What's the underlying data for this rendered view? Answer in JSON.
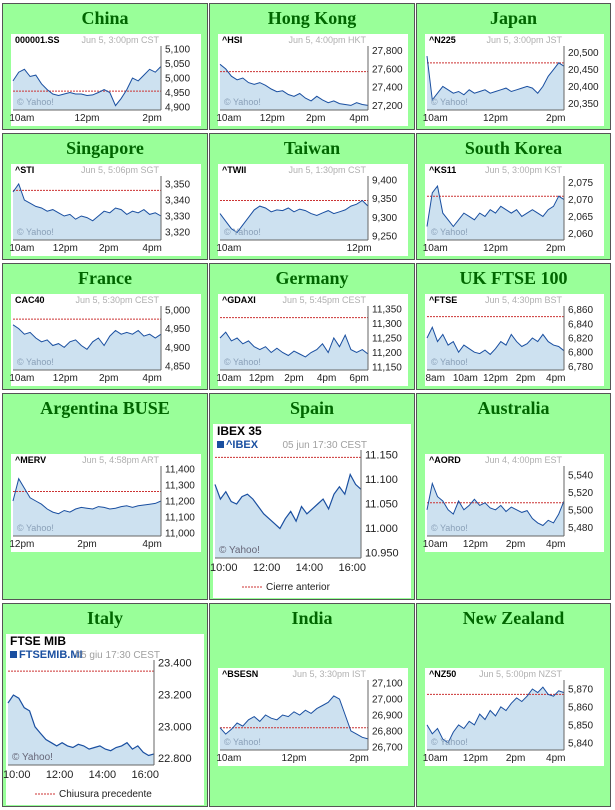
{
  "chart_data": [
    {
      "type": "line",
      "region": "China",
      "symbol": "000001.SS",
      "timestamp": "Jun 5, 3:00pm CST",
      "watermark": "© Yahoo!",
      "x_ticks": [
        "10am",
        "12pm",
        "2pm"
      ],
      "y_ticks": [
        5100,
        5050,
        5000,
        4950,
        4900
      ],
      "ylim": [
        4890,
        5110
      ],
      "prev_close": 4955,
      "line_color": "#1a4fa0",
      "fill_color": "#cde1f0",
      "prev_color": "#cc3333",
      "values": [
        4990,
        5020,
        5030,
        5005,
        5010,
        4980,
        4960,
        4945,
        4940,
        4945,
        4950,
        4945,
        4945,
        4940,
        4942,
        4950,
        4960,
        4950,
        4905,
        4930,
        4960,
        5000,
        4990,
        5010,
        5030,
        5020,
        5040
      ]
    },
    {
      "type": "line",
      "region": "Hong Kong",
      "symbol": "^HSI",
      "timestamp": "Jun 5, 4:00pm HKT",
      "watermark": "© Yahoo!",
      "x_ticks": [
        "10am",
        "12pm",
        "2pm",
        "4pm"
      ],
      "y_ticks": [
        27800,
        27600,
        27400,
        27200
      ],
      "ylim": [
        27150,
        27850
      ],
      "prev_close": 27570,
      "line_color": "#1a4fa0",
      "fill_color": "#cde1f0",
      "prev_color": "#cc3333",
      "values": [
        27650,
        27600,
        27520,
        27480,
        27500,
        27450,
        27430,
        27450,
        27420,
        27380,
        27350,
        27360,
        27320,
        27300,
        27330,
        27280,
        27250,
        27300,
        27260,
        27230,
        27250,
        27220,
        27210,
        27200,
        27230,
        27210,
        27200
      ]
    },
    {
      "type": "line",
      "region": "Japan",
      "symbol": "^N225",
      "timestamp": "Jun 5, 3:00pm JST",
      "watermark": "© Yahoo!",
      "x_ticks": [
        "10am",
        "12pm",
        "2pm"
      ],
      "y_ticks": [
        20500,
        20450,
        20400,
        20350
      ],
      "ylim": [
        20330,
        20520
      ],
      "prev_close": 20470,
      "line_color": "#1a4fa0",
      "fill_color": "#cde1f0",
      "prev_color": "#cc3333",
      "values": [
        20490,
        20360,
        20380,
        20400,
        20390,
        20380,
        20385,
        20375,
        20390,
        20380,
        20385,
        20390,
        20380,
        20385,
        20390,
        20395,
        20385,
        20390,
        20395,
        20400,
        20395,
        20380,
        20400,
        20430,
        20450,
        20470,
        20460
      ]
    },
    {
      "type": "line",
      "region": "Singapore",
      "symbol": "^STI",
      "timestamp": "Jun 5, 5:06pm SGT",
      "watermark": "© Yahoo!",
      "x_ticks": [
        "10am",
        "12pm",
        "2pm",
        "4pm"
      ],
      "y_ticks": [
        3350,
        3340,
        3330,
        3320
      ],
      "ylim": [
        3315,
        3355
      ],
      "prev_close": 3346,
      "line_color": "#1a4fa0",
      "fill_color": "#cde1f0",
      "prev_color": "#cc3333",
      "values": [
        3345,
        3350,
        3340,
        3338,
        3336,
        3335,
        3333,
        3334,
        3332,
        3330,
        3331,
        3328,
        3330,
        3329,
        3327,
        3330,
        3333,
        3332,
        3335,
        3334,
        3331,
        3333,
        3332,
        3334,
        3331,
        3332,
        3330
      ]
    },
    {
      "type": "line",
      "region": "Taiwan",
      "symbol": "^TWII",
      "timestamp": "Jun 5, 1:30pm CST",
      "watermark": "© Yahoo!",
      "x_ticks": [
        "10am",
        "12pm"
      ],
      "y_ticks": [
        9400,
        9350,
        9300,
        9250
      ],
      "ylim": [
        9240,
        9410
      ],
      "prev_close": 9345,
      "line_color": "#1a4fa0",
      "fill_color": "#cde1f0",
      "prev_color": "#cc3333",
      "values": [
        9310,
        9290,
        9270,
        9260,
        9280,
        9300,
        9320,
        9330,
        9325,
        9315,
        9320,
        9318,
        9325,
        9315,
        9322,
        9318,
        9310,
        9305,
        9312,
        9318,
        9310,
        9315,
        9320,
        9330,
        9335,
        9345,
        9330
      ]
    },
    {
      "type": "line",
      "region": "South Korea",
      "symbol": "^KS11",
      "timestamp": "Jun 5, 3:00pm KST",
      "watermark": "© Yahoo!",
      "x_ticks": [
        "10am",
        "12pm",
        "2pm"
      ],
      "y_ticks": [
        2075,
        2070,
        2065,
        2060
      ],
      "ylim": [
        2058,
        2077
      ],
      "prev_close": 2071,
      "line_color": "#1a4fa0",
      "fill_color": "#cde1f0",
      "prev_color": "#cc3333",
      "values": [
        2062,
        2072,
        2074,
        2066,
        2064,
        2062,
        2064,
        2066,
        2065,
        2064,
        2066,
        2065,
        2067,
        2066,
        2068,
        2067,
        2066,
        2067,
        2065,
        2066,
        2067,
        2066,
        2065,
        2067,
        2068,
        2071,
        2070
      ]
    },
    {
      "type": "line",
      "region": "France",
      "symbol": "CAC40",
      "timestamp": "Jun 5, 5:30pm CEST",
      "watermark": "© Yahoo!",
      "x_ticks": [
        "10am",
        "12pm",
        "2pm",
        "4pm"
      ],
      "y_ticks": [
        5000,
        4950,
        4900,
        4850
      ],
      "ylim": [
        4840,
        5010
      ],
      "prev_close": 4975,
      "line_color": "#1a4fa0",
      "fill_color": "#cde1f0",
      "prev_color": "#cc3333",
      "values": [
        4960,
        4950,
        4935,
        4940,
        4925,
        4915,
        4920,
        4905,
        4910,
        4900,
        4915,
        4920,
        4905,
        4895,
        4915,
        4925,
        4905,
        4930,
        4945,
        4935,
        4940,
        4935,
        4945,
        4930,
        4935,
        4925,
        4935
      ]
    },
    {
      "type": "line",
      "region": "Germany",
      "symbol": "^GDAXI",
      "timestamp": "Jun 5, 5:45pm CEST",
      "watermark": "© Yahoo!",
      "x_ticks": [
        "10am",
        "12pm",
        "2pm",
        "4pm",
        "6pm"
      ],
      "y_ticks": [
        11350,
        11300,
        11250,
        11200,
        11150
      ],
      "ylim": [
        11140,
        11360
      ],
      "prev_close": 11320,
      "line_color": "#1a4fa0",
      "fill_color": "#cde1f0",
      "prev_color": "#cc3333",
      "values": [
        11250,
        11270,
        11240,
        11250,
        11230,
        11240,
        11220,
        11210,
        11220,
        11200,
        11215,
        11200,
        11190,
        11205,
        11195,
        11185,
        11200,
        11210,
        11230,
        11200,
        11250,
        11220,
        11260,
        11210,
        11200,
        11210,
        11195
      ]
    },
    {
      "type": "line",
      "region": "UK FTSE 100",
      "symbol": "^FTSE",
      "timestamp": "Jun 5, 4:30pm BST",
      "watermark": "© Yahoo!",
      "x_ticks": [
        "8am",
        "10am",
        "12pm",
        "2pm",
        "4pm"
      ],
      "y_ticks": [
        6860,
        6840,
        6820,
        6800,
        6780
      ],
      "ylim": [
        6775,
        6865
      ],
      "prev_close": 6850,
      "line_color": "#1a4fa0",
      "fill_color": "#cde1f0",
      "prev_color": "#cc3333",
      "values": [
        6820,
        6835,
        6815,
        6825,
        6810,
        6815,
        6800,
        6810,
        6805,
        6800,
        6798,
        6803,
        6797,
        6805,
        6815,
        6810,
        6825,
        6815,
        6808,
        6812,
        6820,
        6815,
        6825,
        6815,
        6810,
        6808,
        6802
      ]
    },
    {
      "type": "line",
      "region": "Argentina BUSE",
      "symbol": "^MERV",
      "timestamp": "Jun 5, 4:58pm ART",
      "watermark": "© Yahoo!",
      "x_ticks": [
        "12pm",
        "2pm",
        "4pm"
      ],
      "y_ticks": [
        11400,
        11300,
        11200,
        11100,
        11000
      ],
      "ylim": [
        10980,
        11420
      ],
      "prev_close": 11260,
      "line_color": "#1a4fa0",
      "fill_color": "#cde1f0",
      "prev_color": "#cc3333",
      "values": [
        11200,
        11340,
        11280,
        11220,
        11200,
        11180,
        11150,
        11130,
        11120,
        11140,
        11130,
        11150,
        11160,
        11155,
        11150,
        11165,
        11160,
        11150,
        11155,
        11165,
        11170,
        11160,
        11170,
        11175,
        11180,
        11185,
        11200
      ]
    },
    {
      "type": "line",
      "region": "Spain",
      "title": "IBEX 35",
      "symbol": "^IBEX",
      "timestamp": "05 jun 17:30 CEST",
      "watermark": "© Yahoo!",
      "legend": "Cierre anterior",
      "x_ticks": [
        "10:00",
        "12:00",
        "14:00",
        "16:00"
      ],
      "y_ticks": [
        "11.150",
        "11.100",
        "11.050",
        "11.000",
        "10.950"
      ],
      "ylim": [
        10940,
        11160
      ],
      "prev_close": 11145,
      "line_color": "#1a4fa0",
      "fill_color": "#cde1f0",
      "prev_color": "#cc3333",
      "values": [
        11090,
        11060,
        11075,
        11055,
        11050,
        11065,
        11070,
        11060,
        11045,
        11030,
        11020,
        11010,
        11000,
        11020,
        11035,
        11015,
        11045,
        11030,
        11040,
        11050,
        11060,
        11040,
        11070,
        11085,
        11070,
        11110,
        11090,
        11080
      ]
    },
    {
      "type": "line",
      "region": "Australia",
      "symbol": "^AORD",
      "timestamp": "Jun 4, 4:00pm EST",
      "watermark": "© Yahoo!",
      "x_ticks": [
        "10am",
        "12pm",
        "2pm",
        "4pm"
      ],
      "y_ticks": [
        5540,
        5520,
        5500,
        5480
      ],
      "ylim": [
        5470,
        5550
      ],
      "prev_close": 5508,
      "line_color": "#1a4fa0",
      "fill_color": "#cde1f0",
      "prev_color": "#cc3333",
      "values": [
        5500,
        5530,
        5515,
        5510,
        5500,
        5495,
        5510,
        5500,
        5505,
        5512,
        5505,
        5508,
        5502,
        5500,
        5505,
        5498,
        5503,
        5500,
        5497,
        5499,
        5490,
        5485,
        5482,
        5488,
        5485,
        5495,
        5510
      ]
    },
    {
      "type": "line",
      "region": "Italy",
      "title": "FTSE MIB",
      "symbol": "FTSEMIB.MI",
      "timestamp": "05 giu 17:30 CEST",
      "watermark": "© Yahoo!",
      "legend": "Chiusura precedente",
      "x_ticks": [
        "10:00",
        "12:00",
        "14:00",
        "16:00"
      ],
      "y_ticks": [
        "23.400",
        "23.200",
        "23.000",
        "22.800"
      ],
      "ylim": [
        22760,
        23420
      ],
      "prev_close": 23350,
      "line_color": "#1a4fa0",
      "fill_color": "#cde1f0",
      "prev_color": "#cc3333",
      "values": [
        23150,
        23200,
        23180,
        23120,
        23100,
        23000,
        22960,
        22920,
        22900,
        22880,
        22900,
        22880,
        22870,
        22890,
        22880,
        22860,
        22870,
        22880,
        22860,
        22850,
        22870,
        22880,
        22900,
        22860,
        22880,
        22840,
        22820,
        22830
      ]
    },
    {
      "type": "line",
      "region": "India",
      "symbol": "^BSESN",
      "timestamp": "Jun 5, 3:30pm IST",
      "watermark": "© Yahoo!",
      "x_ticks": [
        "10am",
        "12pm",
        "2pm"
      ],
      "y_ticks": [
        27100,
        27000,
        26900,
        26800,
        26700
      ],
      "ylim": [
        26680,
        27120
      ],
      "prev_close": 26820,
      "line_color": "#1a4fa0",
      "fill_color": "#cde1f0",
      "prev_color": "#cc3333",
      "values": [
        26820,
        26780,
        26810,
        26850,
        26830,
        26870,
        26890,
        26860,
        26900,
        26880,
        26870,
        26900,
        26890,
        26920,
        26900,
        26930,
        26910,
        26940,
        26960,
        26980,
        27020,
        27000,
        26900,
        26800,
        26780,
        26760,
        26750
      ]
    },
    {
      "type": "line",
      "region": "New Zealand",
      "symbol": "^NZ50",
      "timestamp": "Jun 5, 5:00pm NZST",
      "watermark": "© Yahoo!",
      "x_ticks": [
        "10am",
        "12pm",
        "2pm",
        "4pm"
      ],
      "y_ticks": [
        5870,
        5860,
        5850,
        5840
      ],
      "ylim": [
        5836,
        5875
      ],
      "prev_close": 5867,
      "line_color": "#1a4fa0",
      "fill_color": "#cde1f0",
      "prev_color": "#cc3333",
      "values": [
        5850,
        5845,
        5848,
        5842,
        5840,
        5846,
        5850,
        5848,
        5852,
        5850,
        5856,
        5853,
        5858,
        5855,
        5860,
        5858,
        5862,
        5865,
        5863,
        5866,
        5870,
        5868,
        5871,
        5867,
        5866,
        5869,
        5868
      ]
    }
  ]
}
